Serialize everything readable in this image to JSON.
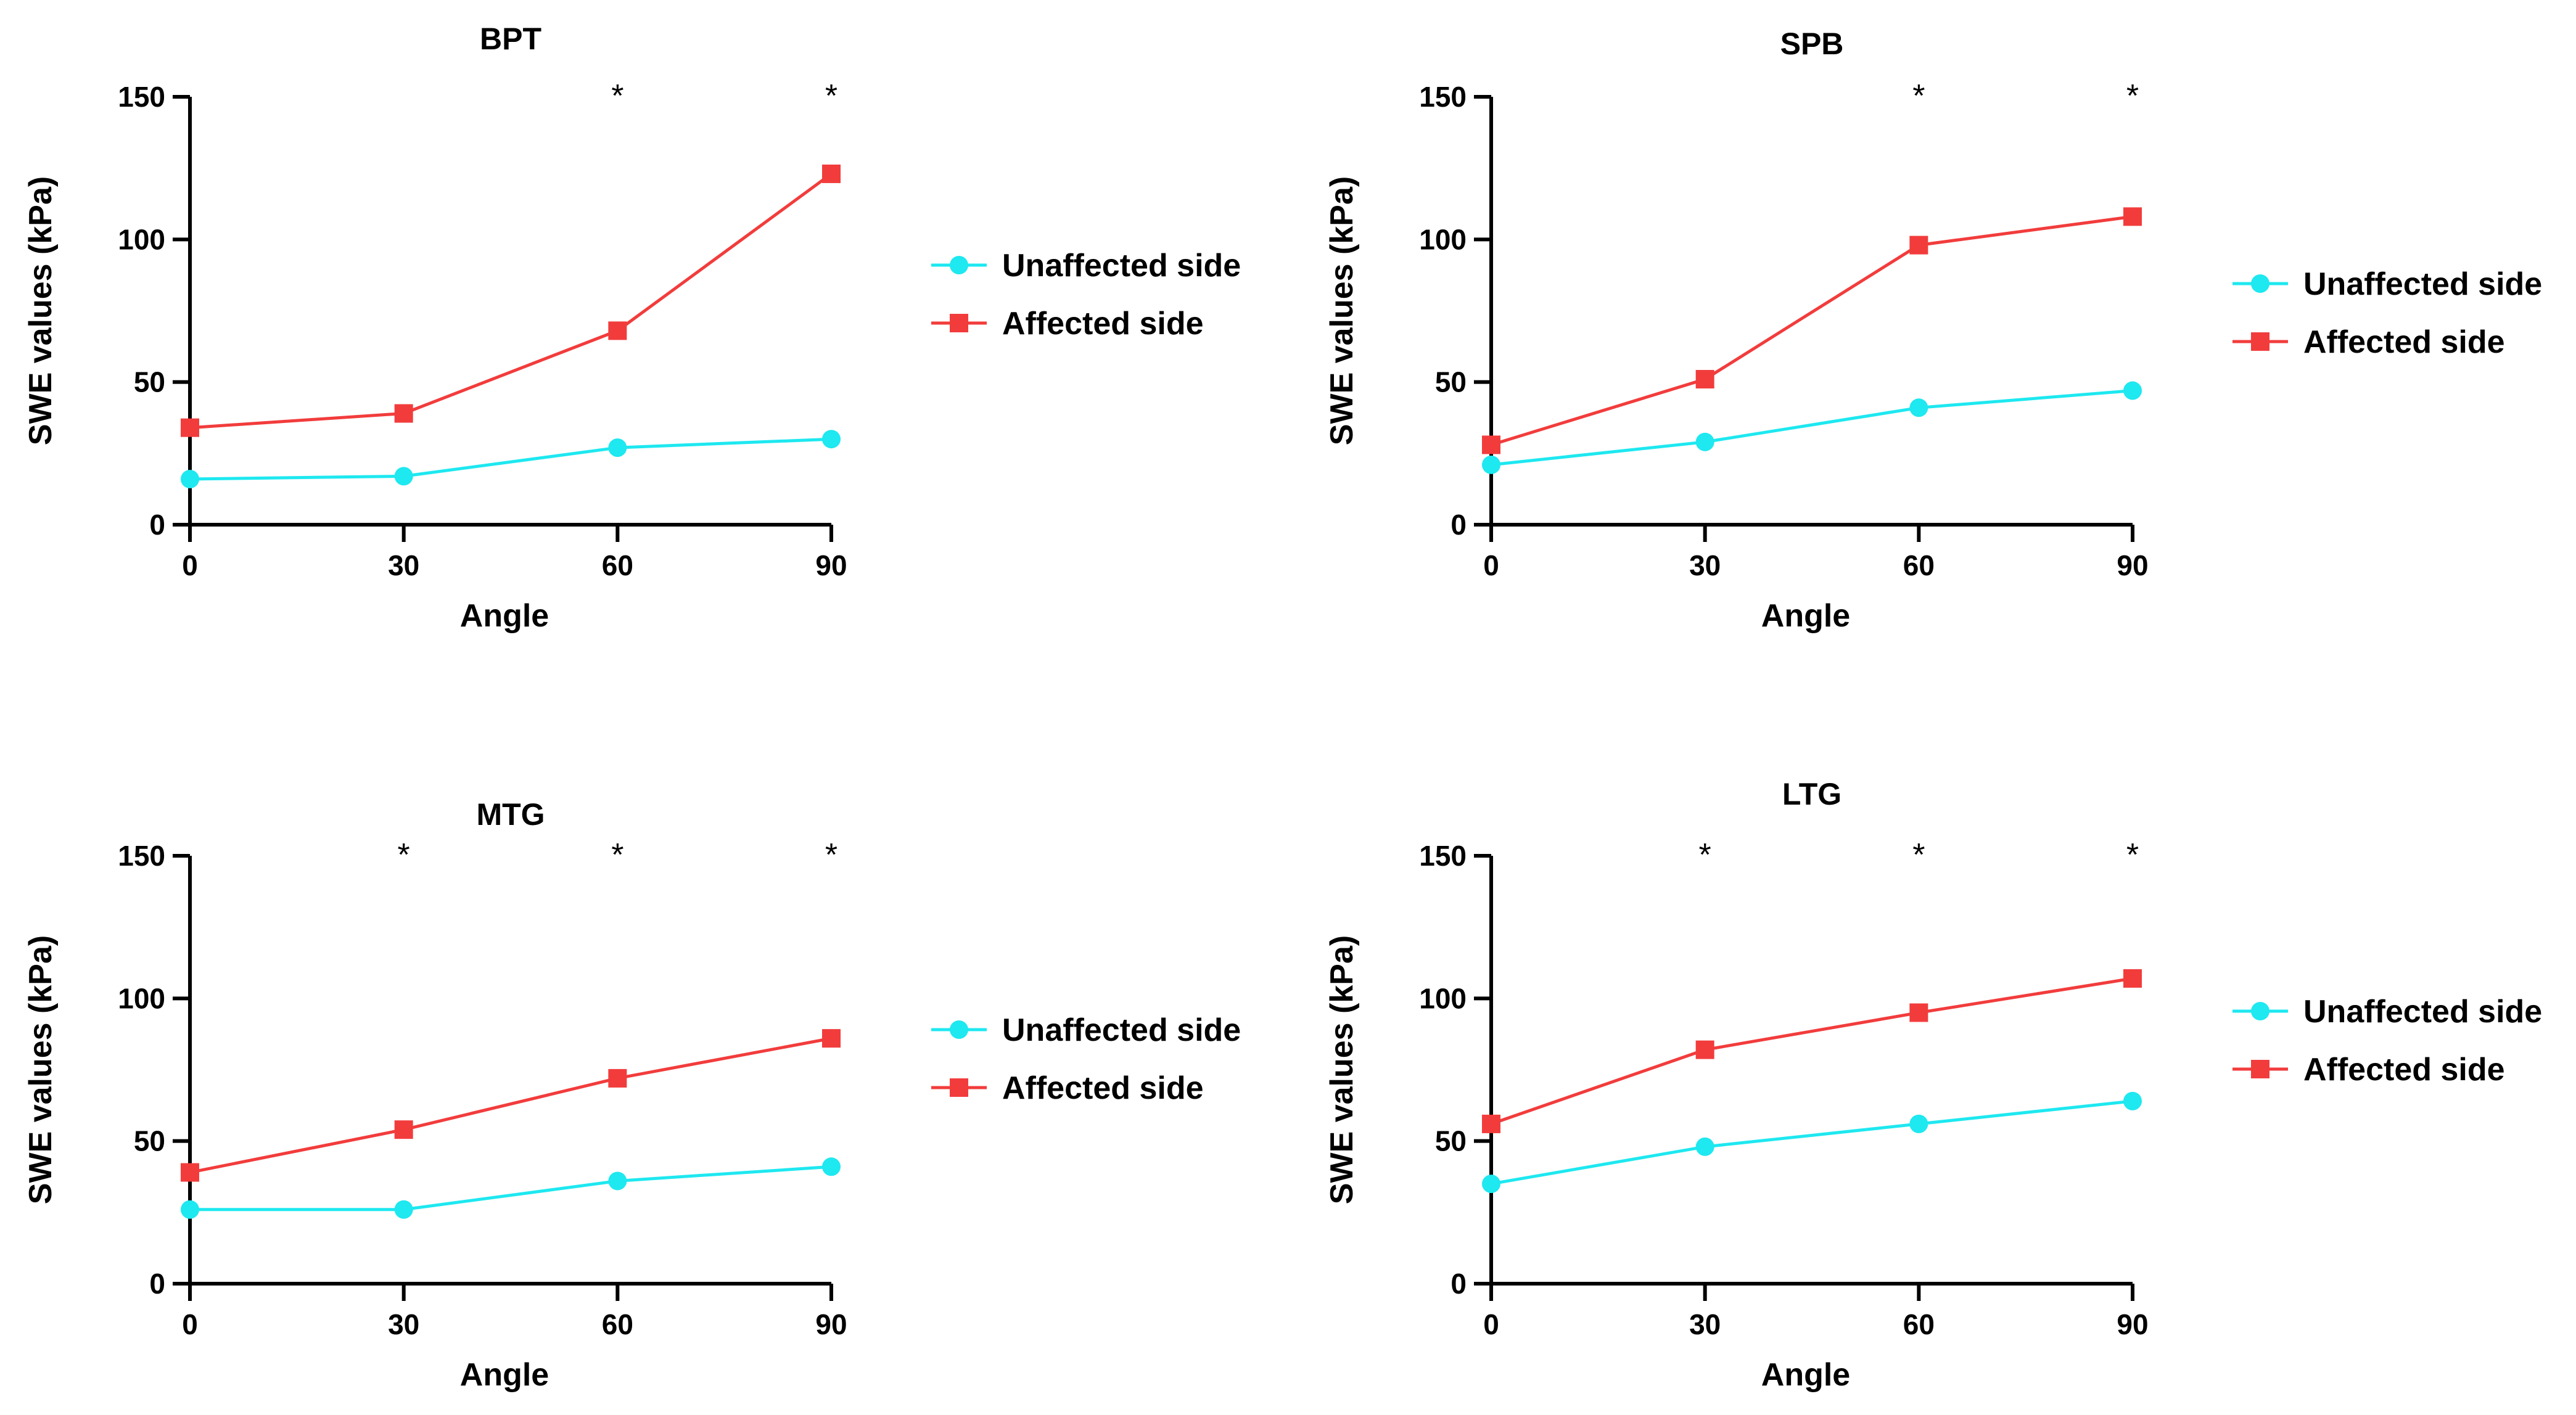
{
  "chart_data": [
    {
      "type": "line",
      "title": "BPT",
      "xlabel": "Angle",
      "ylabel": "SWE values (kPa)",
      "x": [
        0,
        30,
        60,
        90
      ],
      "xticks": [
        "0",
        "30",
        "60",
        "90"
      ],
      "yticks": [
        "0",
        "50",
        "100",
        "150"
      ],
      "ylim": [
        0,
        150
      ],
      "xlim": [
        0,
        90
      ],
      "series": [
        {
          "name": "Unaffected side",
          "color": "#1ee8f0",
          "marker": "circle",
          "values": [
            16,
            17,
            27,
            30
          ]
        },
        {
          "name": "Affected side",
          "color": "#f23c3c",
          "marker": "square",
          "values": [
            34,
            39,
            68,
            123
          ]
        }
      ],
      "significance": [
        {
          "x": 60,
          "label": "*"
        },
        {
          "x": 90,
          "label": "*"
        }
      ],
      "legend": "right"
    },
    {
      "type": "line",
      "title": "SPB",
      "xlabel": "Angle",
      "ylabel": "SWE values (kPa)",
      "x": [
        0,
        30,
        60,
        90
      ],
      "xticks": [
        "0",
        "30",
        "60",
        "90"
      ],
      "yticks": [
        "0",
        "50",
        "100",
        "150"
      ],
      "ylim": [
        0,
        150
      ],
      "xlim": [
        0,
        90
      ],
      "series": [
        {
          "name": "Unaffected side",
          "color": "#1ee8f0",
          "marker": "circle",
          "values": [
            21,
            29,
            41,
            47
          ]
        },
        {
          "name": "Affected side",
          "color": "#f23c3c",
          "marker": "square",
          "values": [
            28,
            51,
            98,
            108
          ]
        }
      ],
      "significance": [
        {
          "x": 60,
          "label": "*"
        },
        {
          "x": 90,
          "label": "*"
        }
      ],
      "legend": "right"
    },
    {
      "type": "line",
      "title": "MTG",
      "xlabel": "Angle",
      "ylabel": "SWE values (kPa)",
      "x": [
        0,
        30,
        60,
        90
      ],
      "xticks": [
        "0",
        "30",
        "60",
        "90"
      ],
      "yticks": [
        "0",
        "50",
        "100",
        "150"
      ],
      "ylim": [
        0,
        150
      ],
      "xlim": [
        0,
        90
      ],
      "series": [
        {
          "name": "Unaffected side",
          "color": "#1ee8f0",
          "marker": "circle",
          "values": [
            26,
            26,
            36,
            41
          ]
        },
        {
          "name": "Affected side",
          "color": "#f23c3c",
          "marker": "square",
          "values": [
            39,
            54,
            72,
            86
          ]
        }
      ],
      "significance": [
        {
          "x": 30,
          "label": "*"
        },
        {
          "x": 60,
          "label": "*"
        },
        {
          "x": 90,
          "label": "*"
        }
      ],
      "legend": "right"
    },
    {
      "type": "line",
      "title": "LTG",
      "xlabel": "Angle",
      "ylabel": "SWE values (kPa)",
      "x": [
        0,
        30,
        60,
        90
      ],
      "xticks": [
        "0",
        "30",
        "60",
        "90"
      ],
      "yticks": [
        "0",
        "50",
        "100",
        "150"
      ],
      "ylim": [
        0,
        150
      ],
      "xlim": [
        0,
        90
      ],
      "series": [
        {
          "name": "Unaffected side",
          "color": "#1ee8f0",
          "marker": "circle",
          "values": [
            35,
            48,
            56,
            64
          ]
        },
        {
          "name": "Affected side",
          "color": "#f23c3c",
          "marker": "square",
          "values": [
            56,
            82,
            95,
            107
          ]
        }
      ],
      "significance": [
        {
          "x": 30,
          "label": "*"
        },
        {
          "x": 60,
          "label": "*"
        },
        {
          "x": 90,
          "label": "*"
        }
      ],
      "legend": "right"
    }
  ]
}
